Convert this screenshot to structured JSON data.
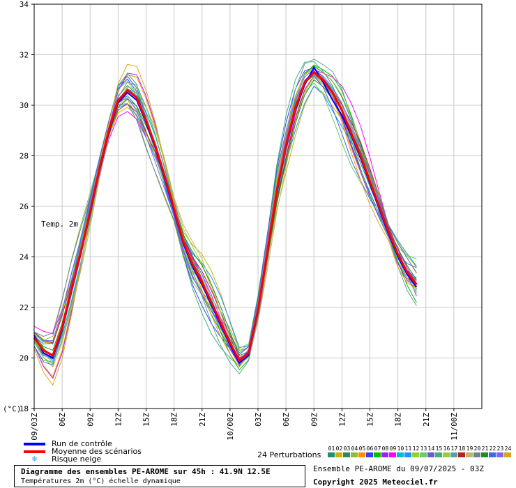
{
  "chart_data": {
    "type": "line",
    "ylabel": "(°C)",
    "inner_label": "Temp. 2m",
    "ylim": [
      18,
      34
    ],
    "yticks": [
      18,
      20,
      22,
      24,
      26,
      28,
      30,
      32,
      34
    ],
    "x_hours_range": [
      0,
      48
    ],
    "xticks": [
      {
        "hour": 0,
        "label": "09/03Z"
      },
      {
        "hour": 3,
        "label": "06Z"
      },
      {
        "hour": 6,
        "label": "09Z"
      },
      {
        "hour": 9,
        "label": "12Z"
      },
      {
        "hour": 12,
        "label": "15Z"
      },
      {
        "hour": 15,
        "label": "18Z"
      },
      {
        "hour": 18,
        "label": "21Z"
      },
      {
        "hour": 21,
        "label": "10/00Z"
      },
      {
        "hour": 24,
        "label": "03Z"
      },
      {
        "hour": 27,
        "label": "06Z"
      },
      {
        "hour": 30,
        "label": "09Z"
      },
      {
        "hour": 33,
        "label": "12Z"
      },
      {
        "hour": 36,
        "label": "15Z"
      },
      {
        "hour": 39,
        "label": "18Z"
      },
      {
        "hour": 42,
        "label": "21Z"
      },
      {
        "hour": 45,
        "label": "11/00Z"
      }
    ],
    "x": [
      0,
      1,
      2,
      3,
      4,
      5,
      6,
      7,
      8,
      9,
      10,
      11,
      12,
      13,
      14,
      15,
      16,
      17,
      18,
      19,
      20,
      21,
      22,
      23,
      24,
      25,
      26,
      27,
      28,
      29,
      30,
      31,
      32,
      33,
      34,
      35,
      36,
      37,
      38,
      39,
      40,
      41,
      42,
      43,
      44,
      45
    ],
    "mean": [
      20.8,
      20.3,
      20.1,
      21.2,
      22.7,
      24.2,
      25.8,
      27.5,
      29.0,
      30.2,
      30.6,
      30.3,
      29.4,
      28.4,
      27.2,
      25.9,
      24.6,
      23.7,
      23.0,
      22.2,
      21.4,
      20.6,
      19.9,
      20.2,
      21.9,
      24.2,
      26.6,
      28.4,
      29.9,
      30.9,
      31.3,
      31.0,
      30.5,
      29.8,
      28.9,
      28.0,
      27.0,
      26.0,
      25.0,
      24.1,
      23.4,
      22.9,
      null,
      null,
      null,
      null
    ],
    "control": [
      20.9,
      20.2,
      20.0,
      21.1,
      22.6,
      24.1,
      25.7,
      27.4,
      28.9,
      30.1,
      30.5,
      30.2,
      29.3,
      28.3,
      27.1,
      25.8,
      24.5,
      23.6,
      22.9,
      22.1,
      21.3,
      20.5,
      19.8,
      20.1,
      21.8,
      24.1,
      26.5,
      28.3,
      29.8,
      30.8,
      31.5,
      30.9,
      30.2,
      29.6,
      28.8,
      27.9,
      26.9,
      25.9,
      24.9,
      24.0,
      23.3,
      22.8,
      null,
      null,
      null,
      null
    ],
    "perturbation_count_label": "24 Perturbations",
    "perturbation_codes": [
      "01",
      "02",
      "03",
      "04",
      "05",
      "06",
      "07",
      "08",
      "09",
      "10",
      "11",
      "12",
      "13",
      "14",
      "15",
      "16",
      "17",
      "18",
      "19",
      "20",
      "21",
      "22",
      "23",
      "24"
    ],
    "perturbation_colors": [
      "#1f8f6f",
      "#c8b400",
      "#2e8b57",
      "#8fbc3f",
      "#ff8c00",
      "#3c3cff",
      "#00c000",
      "#a020f0",
      "#ff00ff",
      "#00bcd4",
      "#1e90ff",
      "#9acd32",
      "#66cc66",
      "#6a5acd",
      "#3cb371",
      "#9acd32",
      "#5f9ea0",
      "#b22222",
      "#bdb76b",
      "#708090",
      "#228b22",
      "#4169e1",
      "#7b68ee",
      "#daa520"
    ],
    "legend": [
      {
        "label": "Run de contrôle",
        "color": "#0000ff",
        "kind": "line"
      },
      {
        "label": "Moyenne des scénarios",
        "color": "#ff0000",
        "kind": "line"
      },
      {
        "label": "Risque neige",
        "color": "#4aa3df",
        "kind": "snowflake"
      }
    ]
  },
  "info": {
    "title": "Diagramme des ensembles PE-AROME sur 45h : 41.9N 12.5E",
    "subtitle": "Températures 2m (°C) échelle dynamique"
  },
  "footer": {
    "run": "Ensemble PE-AROME du 09/07/2025 - 03Z",
    "copyright": "Copyright 2025 Meteociel.fr"
  }
}
